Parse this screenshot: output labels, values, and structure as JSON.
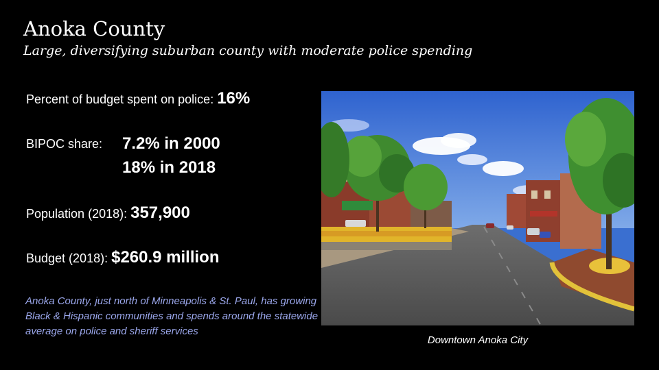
{
  "slide": {
    "title": "Anoka County",
    "subtitle": "Large, diversifying suburban county with moderate police spending"
  },
  "stats": {
    "police_label": "Percent of budget spent on police: ",
    "police_value": "16%",
    "bipoc_label": "BIPOC share:",
    "bipoc_2000": "7.2% in 2000",
    "bipoc_2018": "18%  in 2018",
    "population_label": "Population (2018): ",
    "population_value": "357,900",
    "budget_label": "Budget (2018): ",
    "budget_value": "$260.9 million"
  },
  "description": "Anoka County, just north of Minneapolis & St. Paul, has growing Black & Hispanic communities and spends around the statewide average on police and sheriff services",
  "photo": {
    "caption": "Downtown Anoka City"
  },
  "colors": {
    "background": "#000000",
    "text": "#ffffff",
    "description_text": "#9aa6ea"
  }
}
